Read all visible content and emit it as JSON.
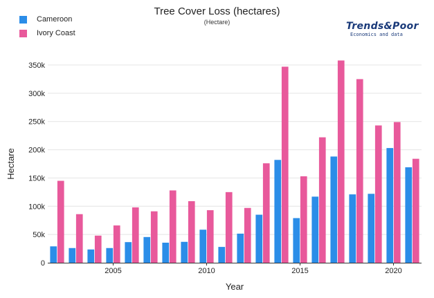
{
  "chart_data": {
    "type": "bar",
    "title": "Tree Cover Loss (hectares)",
    "subtitle": "(Hectare)",
    "xlabel": "Year",
    "ylabel": "Hectare",
    "ylim": [
      0,
      350000
    ],
    "yticks": [
      {
        "value": 0,
        "label": "0"
      },
      {
        "value": 50000,
        "label": "50k"
      },
      {
        "value": 100000,
        "label": "100k"
      },
      {
        "value": 150000,
        "label": "150k"
      },
      {
        "value": 200000,
        "label": "200k"
      },
      {
        "value": 250000,
        "label": "250k"
      },
      {
        "value": 300000,
        "label": "300k"
      },
      {
        "value": 350000,
        "label": "350k"
      }
    ],
    "categories": [
      2002,
      2003,
      2004,
      2005,
      2006,
      2007,
      2008,
      2009,
      2010,
      2011,
      2012,
      2013,
      2014,
      2015,
      2016,
      2017,
      2018,
      2019,
      2020,
      2021
    ],
    "xticks": [
      {
        "value": 2005,
        "label": "2005"
      },
      {
        "value": 2010,
        "label": "2010"
      },
      {
        "value": 2015,
        "label": "2015"
      },
      {
        "value": 2020,
        "label": "2020"
      }
    ],
    "legend_position": "top-left",
    "grid": true,
    "series": [
      {
        "name": "Cameroon",
        "color": "#2b8de8",
        "values": [
          29000,
          26000,
          23500,
          26000,
          36500,
          45500,
          35500,
          37000,
          58500,
          28000,
          51500,
          85000,
          182000,
          79000,
          117000,
          188000,
          121000,
          122000,
          203000,
          169000
        ]
      },
      {
        "name": "Ivory Coast",
        "color": "#e8599b",
        "values": [
          145000,
          86000,
          48000,
          66000,
          98000,
          91000,
          128000,
          109000,
          93000,
          125000,
          97000,
          176000,
          347000,
          153000,
          222000,
          358000,
          325000,
          243000,
          249000,
          184000
        ]
      }
    ]
  },
  "logo": {
    "name": "Trends&Poor",
    "tagline": "Economics and data"
  }
}
